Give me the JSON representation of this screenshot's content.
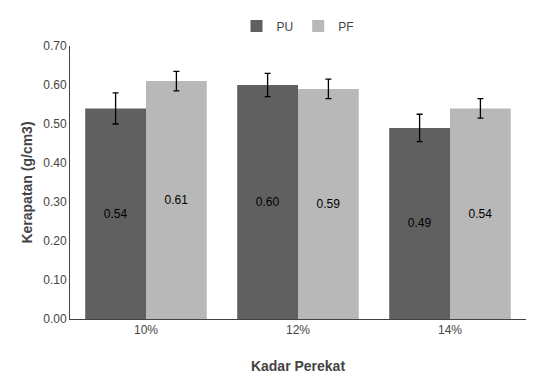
{
  "chart_data": {
    "type": "bar",
    "xlabel": "Kadar Perekat",
    "ylabel": "Kerapatan (g/cm3)",
    "categories": [
      "10%",
      "12%",
      "14%"
    ],
    "series": [
      {
        "name": "PU",
        "color": "#606060",
        "values": [
          0.54,
          0.6,
          0.49
        ],
        "errors": [
          0.04,
          0.03,
          0.035
        ],
        "value_labels": [
          "0.54",
          "0.60",
          "0.49"
        ]
      },
      {
        "name": "PF",
        "color": "#b8b8b8",
        "values": [
          0.61,
          0.59,
          0.54
        ],
        "errors": [
          0.025,
          0.025,
          0.025
        ],
        "value_labels": [
          "0.61",
          "0.59",
          "0.54"
        ]
      }
    ],
    "ylim": [
      0.0,
      0.7
    ],
    "yticks": [
      {
        "value": 0.0,
        "label": "0.00"
      },
      {
        "value": 0.1,
        "label": "0.10"
      },
      {
        "value": 0.2,
        "label": "0.20"
      },
      {
        "value": 0.3,
        "label": "0.30"
      },
      {
        "value": 0.4,
        "label": "0.40"
      },
      {
        "value": 0.5,
        "label": "0.50"
      },
      {
        "value": 0.6,
        "label": "0.60"
      },
      {
        "value": 0.7,
        "label": "0.70"
      }
    ],
    "grid": false,
    "legend": "top",
    "data_labels": true
  }
}
